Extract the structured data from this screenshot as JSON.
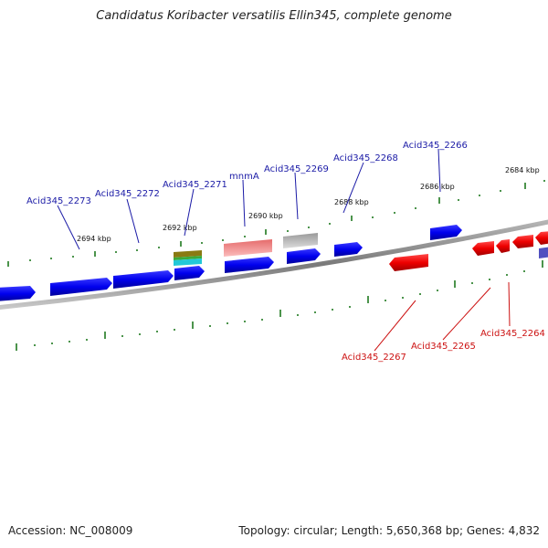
{
  "title": "Candidatus Koribacter versatilis Ellin345, complete genome",
  "footer": {
    "accession": "Accession: NC_008009",
    "summary": "Topology: circular; Length: 5,650,368 bp; Genes: 4,832"
  },
  "colors": {
    "plus_strand": "#0000ee",
    "minus_strand": "#ee0000",
    "rna": "#f08080",
    "pseudo": "#b0b0b0",
    "backbone": "#888888",
    "ticks": "#1f7a1f",
    "label_plus": "#1a1aa6",
    "label_minus": "#cc1111"
  },
  "scale_labels": [
    "2684 kbp",
    "2686 kbp",
    "2688 kbp",
    "2690 kbp",
    "2692 kbp",
    "2694 kbp"
  ],
  "plus_genes": [
    "Acid345_2266",
    "Acid345_2268",
    "Acid345_2269",
    "mnmA",
    "Acid345_2271",
    "Acid345_2272",
    "Acid345_2273"
  ],
  "minus_genes": [
    "Acid345_2264",
    "Acid345_2265",
    "Acid345_2267"
  ]
}
